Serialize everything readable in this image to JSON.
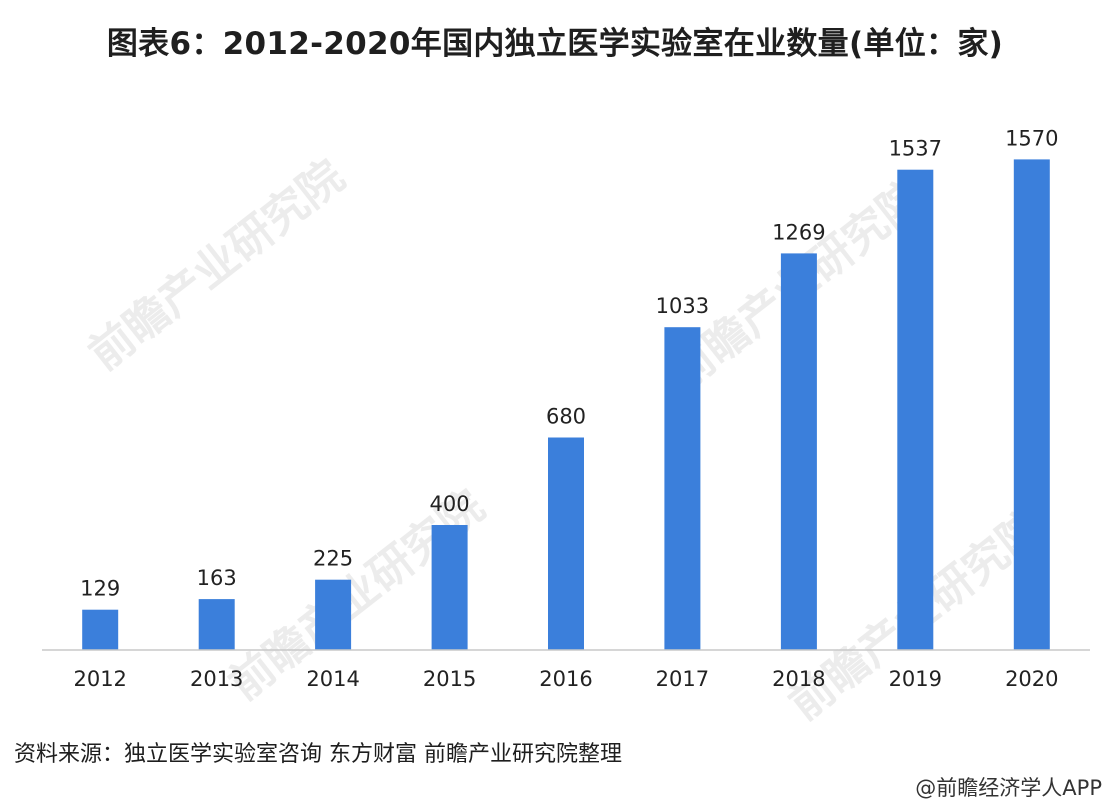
{
  "title": "图表6：2012-2020年国内独立医学实验室在业数量(单位：家)",
  "source": "资料来源：独立医学实验室咨询 东方财富 前瞻产业研究院整理",
  "credit": "@前瞻经济学人APP",
  "watermark_text": "前瞻产业研究院",
  "colors": {
    "bar": "#3b7fdb",
    "axis": "#c8c8c8",
    "label": "#222222",
    "background": "#ffffff"
  },
  "chart_data": {
    "type": "bar",
    "categories": [
      "2012",
      "2013",
      "2014",
      "2015",
      "2016",
      "2017",
      "2018",
      "2019",
      "2020"
    ],
    "values": [
      129,
      163,
      225,
      400,
      680,
      1033,
      1269,
      1537,
      1570
    ],
    "data_labels": [
      "129",
      "163",
      "225",
      "400",
      "680",
      "1033",
      "1269",
      "1537",
      "1570"
    ],
    "title": "图表6：2012-2020年国内独立医学实验室在业数量(单位：家)",
    "xlabel": "",
    "ylabel": "",
    "ylim": [
      0,
      1600
    ],
    "grid": false,
    "legend": "none"
  }
}
